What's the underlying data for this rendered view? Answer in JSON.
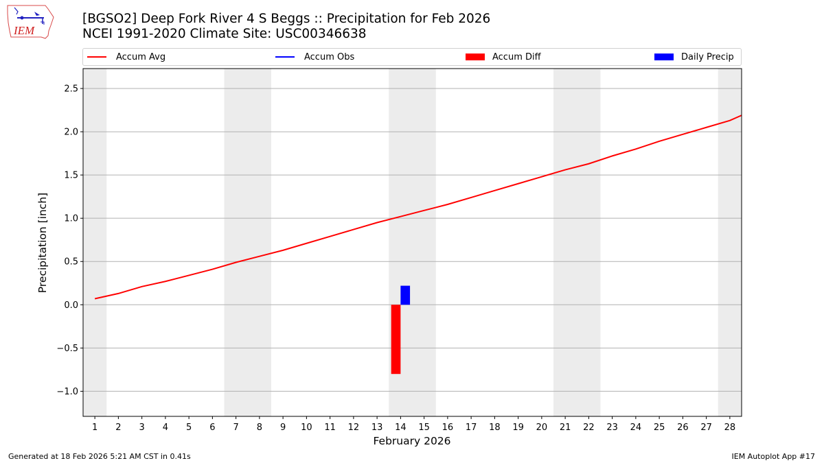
{
  "header": {
    "logo_text": "IEM",
    "title_line1": "[BGSO2] Deep Fork River 4 S Beggs :: Precipitation for Feb 2026",
    "title_line2": "NCEI 1991-2020 Climate Site: USC00346638"
  },
  "legend": [
    {
      "label": "Accum Avg",
      "kind": "line",
      "color": "#ff0000"
    },
    {
      "label": "Accum Obs",
      "kind": "line",
      "color": "#0000ff"
    },
    {
      "label": "Accum Diff",
      "kind": "box",
      "color": "#ff0000"
    },
    {
      "label": "Daily Precip",
      "kind": "box",
      "color": "#0000ff"
    }
  ],
  "axes": {
    "ylabel": "Precipitation [inch]",
    "xlabel": "February 2026"
  },
  "footer": {
    "generated": "Generated at 18 Feb 2026 5:21 AM CST in 0.41s",
    "app": "IEM Autoplot App #17"
  },
  "colors": {
    "accum_avg": "#ff0000",
    "accum_obs": "#0000ff",
    "accum_diff": "#ff0000",
    "daily_precip": "#0000ff",
    "weekend_shade": "#ececec",
    "grid": "#b0b0b0"
  },
  "chart_data": {
    "type": "line",
    "title": "[BGSO2] Deep Fork River 4 S Beggs :: Precipitation for Feb 2026",
    "subtitle": "NCEI 1991-2020 Climate Site: USC00346638",
    "xlabel": "February 2026",
    "ylabel": "Precipitation [inch]",
    "xlim": [
      0.5,
      28.5
    ],
    "ylim": [
      -1.29,
      2.73
    ],
    "grid": "y",
    "legend_position": "top",
    "x_ticks": [
      1,
      2,
      3,
      4,
      5,
      6,
      7,
      8,
      9,
      10,
      11,
      12,
      13,
      14,
      15,
      16,
      17,
      18,
      19,
      20,
      21,
      22,
      23,
      24,
      25,
      26,
      27,
      28
    ],
    "y_ticks": [
      -1.0,
      -0.5,
      0.0,
      0.5,
      1.0,
      1.5,
      2.0,
      2.5
    ],
    "y_tick_labels": [
      "−1.0",
      "−0.5",
      "0.0",
      "0.5",
      "1.0",
      "1.5",
      "2.0",
      "2.5"
    ],
    "weekend_shading": [
      [
        0.5,
        1.5
      ],
      [
        6.5,
        8.5
      ],
      [
        13.5,
        15.5
      ],
      [
        20.5,
        22.5
      ],
      [
        27.5,
        28.5
      ]
    ],
    "series": [
      {
        "name": "Accum Avg",
        "type": "line",
        "color": "#ff0000",
        "x": [
          1,
          2,
          3,
          4,
          5,
          6,
          7,
          8,
          9,
          10,
          11,
          12,
          13,
          14,
          15,
          16,
          17,
          18,
          19,
          20,
          21,
          22,
          23,
          24,
          25,
          26,
          27,
          28,
          28.5
        ],
        "values": [
          0.07,
          0.13,
          0.21,
          0.27,
          0.34,
          0.41,
          0.49,
          0.56,
          0.63,
          0.71,
          0.79,
          0.87,
          0.95,
          1.02,
          1.09,
          1.16,
          1.24,
          1.32,
          1.4,
          1.48,
          1.56,
          1.63,
          1.72,
          1.8,
          1.89,
          1.97,
          2.05,
          2.13,
          2.19
        ]
      },
      {
        "name": "Accum Obs",
        "type": "line",
        "color": "#0000ff",
        "x": [],
        "values": []
      },
      {
        "name": "Accum Diff",
        "type": "bar",
        "color": "#ff0000",
        "x": [
          14
        ],
        "values": [
          -0.8
        ]
      },
      {
        "name": "Daily Precip",
        "type": "bar",
        "color": "#0000ff",
        "x": [
          14
        ],
        "values": [
          0.22
        ]
      }
    ]
  }
}
